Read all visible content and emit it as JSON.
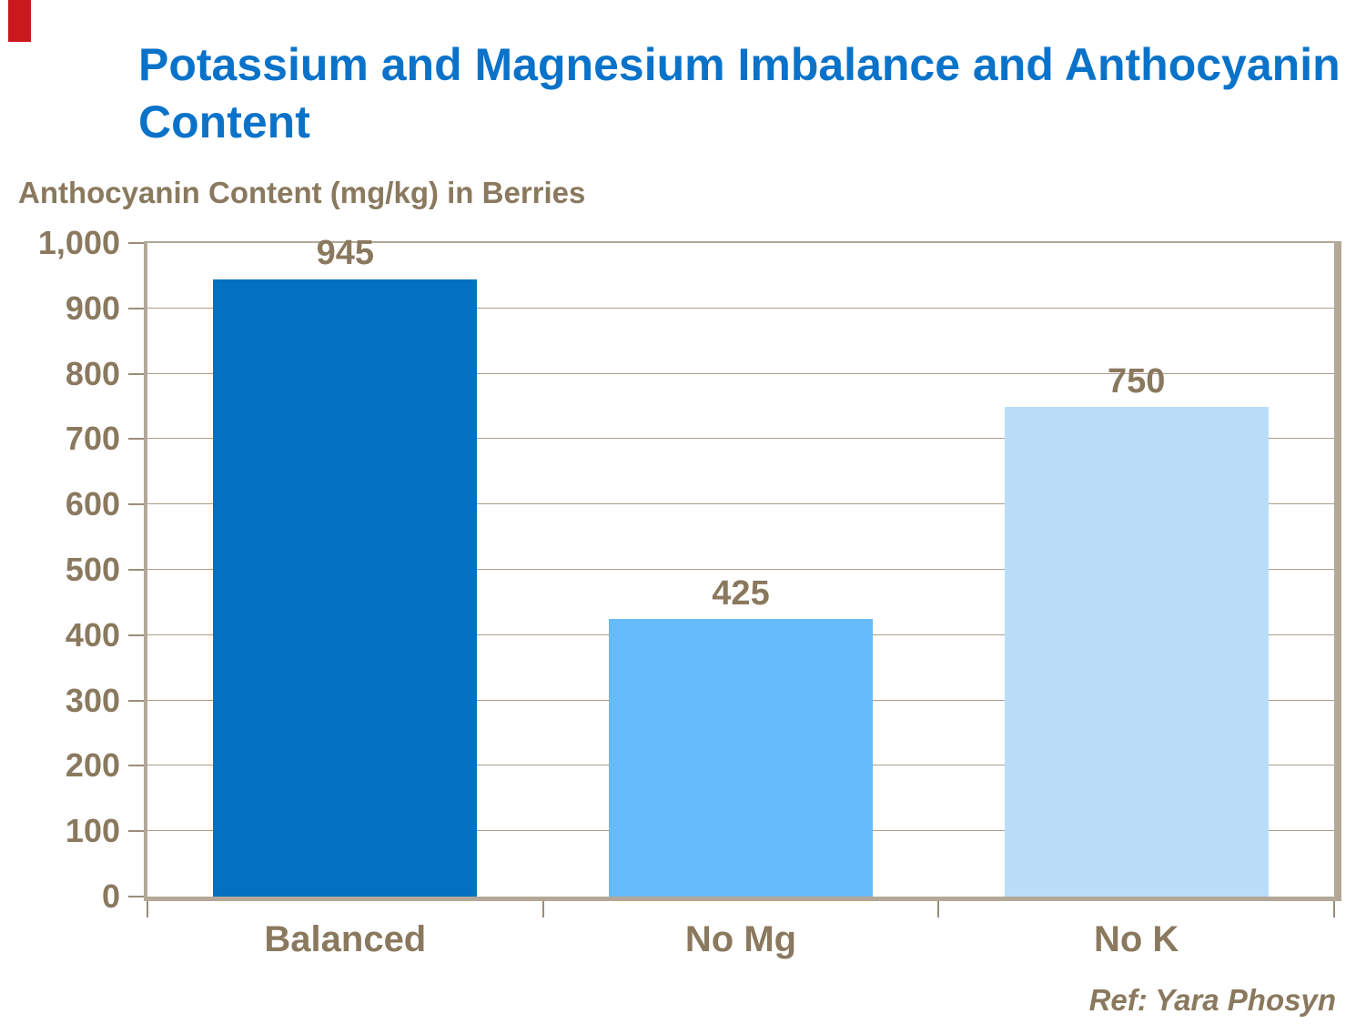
{
  "slide": {
    "title": "Potassium and Magnesium Imbalance and Anthocyanin Content",
    "ref_note": "Ref: Yara Phosyn"
  },
  "chart_data": {
    "type": "bar",
    "title": "Potassium and Magnesium Imbalance and Anthocyanin Content",
    "axis_title": "Anthocyanin Content (mg/kg) in Berries",
    "categories": [
      "Balanced",
      "No Mg",
      "No K"
    ],
    "values": [
      945,
      425,
      750
    ],
    "value_labels": [
      "945",
      "425",
      "750"
    ],
    "bar_colors": [
      "#0171c0",
      "#66bbfa",
      "#badef8"
    ],
    "ylim": [
      0,
      1000
    ],
    "ytick_interval": 100,
    "ytick_labels": [
      "0",
      "100",
      "200",
      "300",
      "400",
      "500",
      "600",
      "700",
      "800",
      "900",
      "1,000"
    ],
    "grid": true,
    "legend": "none"
  },
  "palette": {
    "title_blue": "#0a73c9",
    "text_brown": "#8a795e",
    "axis_frame_tan": "#b3a797",
    "gridline": "#9b8d79",
    "accent_red": "#cb181d",
    "background": "#ffffff"
  }
}
